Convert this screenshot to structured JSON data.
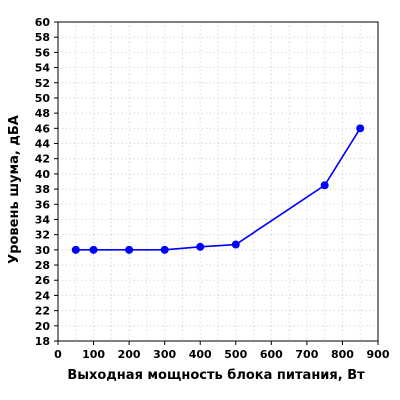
{
  "chart_data": {
    "type": "line",
    "title": "",
    "xlabel": "Выходная мощность блока питания, Вт",
    "ylabel": "Уровень шума, дБА",
    "xlim": [
      0,
      900
    ],
    "ylim": [
      18,
      60
    ],
    "x_ticks": [
      0,
      100,
      200,
      300,
      400,
      500,
      600,
      700,
      800,
      900
    ],
    "x_minor_step": 50,
    "y_ticks": [
      18,
      20,
      22,
      24,
      26,
      28,
      30,
      32,
      34,
      36,
      38,
      40,
      42,
      44,
      46,
      48,
      50,
      52,
      54,
      56,
      58,
      60
    ],
    "grid": true,
    "series": [
      {
        "color": "#0000ff",
        "x": [
          50,
          100,
          200,
          300,
          400,
          500,
          750,
          850
        ],
        "y": [
          30.0,
          30.0,
          30.0,
          30.0,
          30.4,
          30.7,
          38.5,
          46.0
        ]
      }
    ]
  }
}
